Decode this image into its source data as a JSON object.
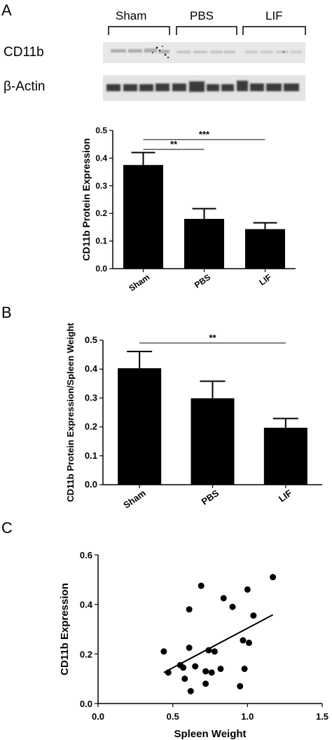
{
  "panels": {
    "a": "A",
    "b": "B",
    "c": "C"
  },
  "blot": {
    "groups": [
      "Sham",
      "PBS",
      "LIF"
    ],
    "rows": [
      "CD11b",
      "β-Actin"
    ]
  },
  "chart_data": [
    {
      "type": "bar",
      "panel": "A",
      "categories": [
        "Sham",
        "PBS",
        "LIF"
      ],
      "values": [
        0.375,
        0.18,
        0.143
      ],
      "errors": [
        0.045,
        0.037,
        0.023
      ],
      "ylabel": "CD11b Protein Expression",
      "ylim": [
        0,
        0.5
      ],
      "yticks": [
        "0.0",
        "0.1",
        "0.2",
        "0.3",
        "0.4",
        "0.5"
      ],
      "bar_color": "#000000",
      "significance": [
        {
          "from": "Sham",
          "to": "PBS",
          "label": "**"
        },
        {
          "from": "Sham",
          "to": "LIF",
          "label": "***"
        }
      ]
    },
    {
      "type": "bar",
      "panel": "B",
      "categories": [
        "Sham",
        "PBS",
        "LIF"
      ],
      "values": [
        0.403,
        0.299,
        0.197
      ],
      "errors": [
        0.058,
        0.059,
        0.032
      ],
      "ylabel": "CD11b Protein Expression/Spleen Weight",
      "ylim": [
        0,
        0.5
      ],
      "yticks": [
        "0.0",
        "0.1",
        "0.2",
        "0.3",
        "0.4",
        "0.5"
      ],
      "bar_color": "#000000",
      "significance": [
        {
          "from": "Sham",
          "to": "LIF",
          "label": "**"
        }
      ]
    },
    {
      "type": "scatter",
      "panel": "C",
      "xlabel": "Spleen Weight",
      "ylabel": "CD11b Expression",
      "xlim": [
        0,
        1.5
      ],
      "ylim": [
        0,
        0.6
      ],
      "xticks": [
        "0.0",
        "0.5",
        "1.0",
        "1.5"
      ],
      "yticks": [
        "0.0",
        "0.2",
        "0.4",
        "0.6"
      ],
      "points": [
        [
          0.44,
          0.21
        ],
        [
          0.47,
          0.125
        ],
        [
          0.55,
          0.155
        ],
        [
          0.57,
          0.145
        ],
        [
          0.58,
          0.1
        ],
        [
          0.61,
          0.38
        ],
        [
          0.61,
          0.225
        ],
        [
          0.62,
          0.05
        ],
        [
          0.65,
          0.15
        ],
        [
          0.69,
          0.475
        ],
        [
          0.72,
          0.13
        ],
        [
          0.72,
          0.08
        ],
        [
          0.74,
          0.215
        ],
        [
          0.76,
          0.125
        ],
        [
          0.78,
          0.21
        ],
        [
          0.82,
          0.14
        ],
        [
          0.84,
          0.425
        ],
        [
          0.9,
          0.39
        ],
        [
          0.95,
          0.07
        ],
        [
          0.97,
          0.255
        ],
        [
          0.98,
          0.14
        ],
        [
          1.0,
          0.46
        ],
        [
          1.01,
          0.245
        ],
        [
          1.04,
          0.355
        ],
        [
          1.17,
          0.51
        ]
      ],
      "fit_line": {
        "x": [
          0.44,
          1.17
        ],
        "y": [
          0.125,
          0.358
        ]
      },
      "point_color": "#000000"
    }
  ]
}
